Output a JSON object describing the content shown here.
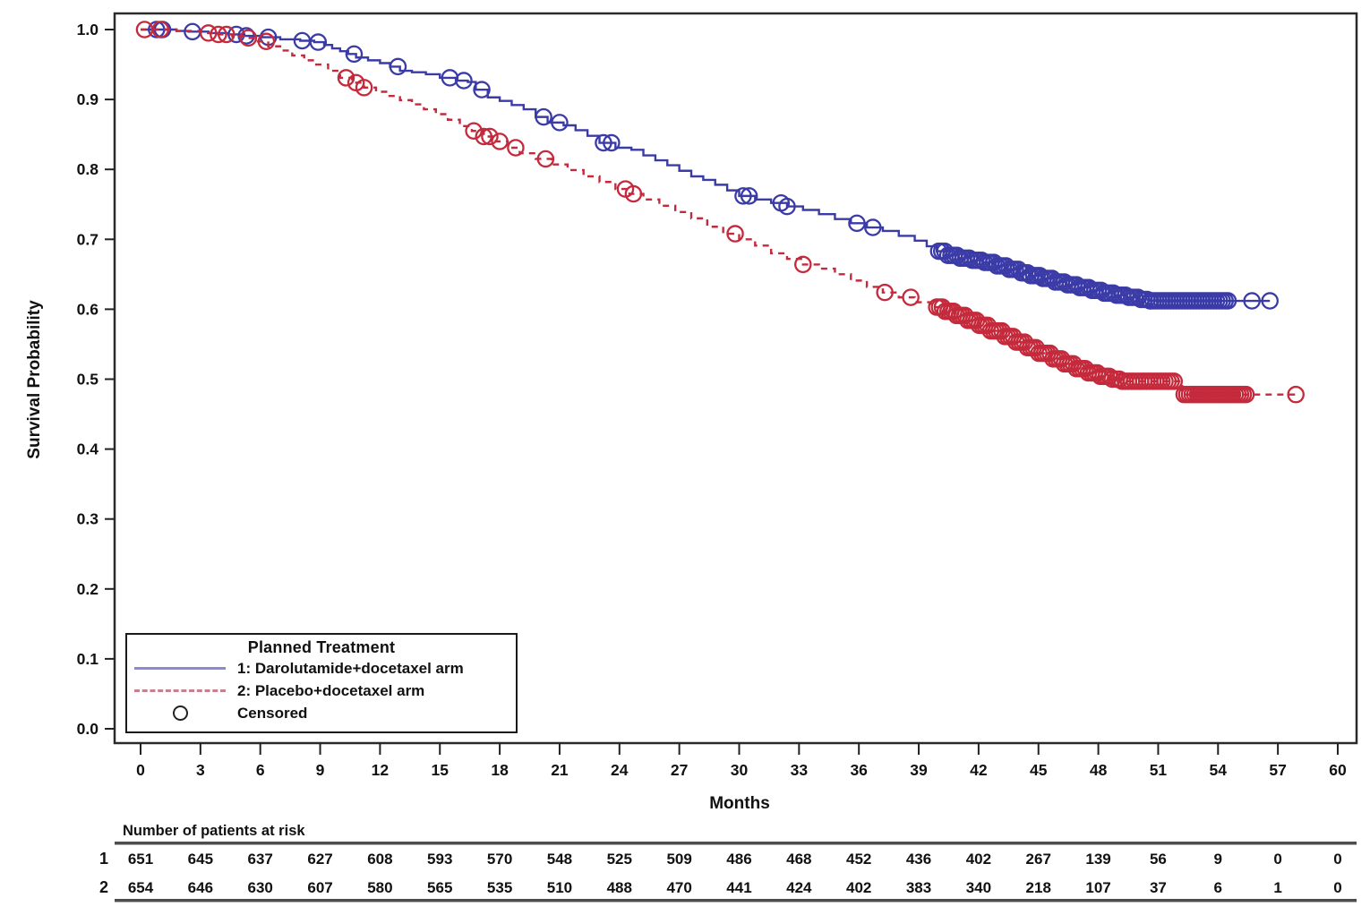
{
  "figure": {
    "ylabel": "Survival Probability",
    "xlabel": "Months",
    "colors": {
      "arm1_blue": "#3B3BA8",
      "arm2_red": "#C42A3C",
      "legend_sample_blue": "#8A8AD2",
      "legend_sample_red": "#C8808F",
      "censor_black": "#222222",
      "axis_text": "#111111",
      "table_rule": "#4d4d4d"
    }
  },
  "legend": {
    "title": "Planned Treatment",
    "entries": [
      {
        "label": "1: Darolutamide+docetaxel arm",
        "style": "solid-line",
        "color": "#3B3BA8"
      },
      {
        "label": "2: Placebo+docetaxel arm",
        "style": "dashed-line",
        "color": "#C42A3C"
      },
      {
        "label": "Censored",
        "style": "open-circle",
        "color": "#222222"
      }
    ]
  },
  "risk_table": {
    "title": "Number of patients at risk",
    "rows": [
      {
        "label": "1",
        "counts": [
          651,
          645,
          637,
          627,
          608,
          593,
          570,
          548,
          525,
          509,
          486,
          468,
          452,
          436,
          402,
          267,
          139,
          56,
          9,
          0,
          0
        ]
      },
      {
        "label": "2",
        "counts": [
          654,
          646,
          630,
          607,
          580,
          565,
          535,
          510,
          488,
          470,
          441,
          424,
          402,
          383,
          340,
          218,
          107,
          37,
          6,
          1,
          0
        ]
      }
    ]
  },
  "chart_data": {
    "type": "line",
    "subtype": "kaplan-meier-step",
    "title": "",
    "xlabel": "Months",
    "ylabel": "Survival Probability",
    "xlim": [
      0,
      60
    ],
    "ylim": [
      0.0,
      1.0
    ],
    "x_ticks": [
      0,
      3,
      6,
      9,
      12,
      15,
      18,
      21,
      24,
      27,
      30,
      33,
      36,
      39,
      42,
      45,
      48,
      51,
      54,
      57,
      60
    ],
    "y_ticks": [
      0.0,
      0.1,
      0.2,
      0.3,
      0.4,
      0.5,
      0.6,
      0.7,
      0.8,
      0.9,
      1.0
    ],
    "grid": false,
    "legend_position": "bottom-left-inside",
    "series": [
      {
        "name": "1: Darolutamide+docetaxel arm",
        "color": "#3B3BA8",
        "line_style": "solid",
        "steps": [
          [
            0,
            1.0
          ],
          [
            1.8,
            0.998
          ],
          [
            2.4,
            0.997
          ],
          [
            3.4,
            0.995
          ],
          [
            4.4,
            0.993
          ],
          [
            5.2,
            0.991
          ],
          [
            6.1,
            0.989
          ],
          [
            7.0,
            0.986
          ],
          [
            8.0,
            0.984
          ],
          [
            8.7,
            0.982
          ],
          [
            9.2,
            0.978
          ],
          [
            9.6,
            0.973
          ],
          [
            10.0,
            0.969
          ],
          [
            10.4,
            0.965
          ],
          [
            10.8,
            0.96
          ],
          [
            11.4,
            0.956
          ],
          [
            12.0,
            0.952
          ],
          [
            12.5,
            0.947
          ],
          [
            13.0,
            0.941
          ],
          [
            13.6,
            0.939
          ],
          [
            14.3,
            0.936
          ],
          [
            15.0,
            0.931
          ],
          [
            15.8,
            0.927
          ],
          [
            16.4,
            0.925
          ],
          [
            16.8,
            0.914
          ],
          [
            17.4,
            0.903
          ],
          [
            18.0,
            0.898
          ],
          [
            18.6,
            0.892
          ],
          [
            19.2,
            0.886
          ],
          [
            19.8,
            0.875
          ],
          [
            20.4,
            0.867
          ],
          [
            21.2,
            0.863
          ],
          [
            21.8,
            0.856
          ],
          [
            22.4,
            0.848
          ],
          [
            23.0,
            0.838
          ],
          [
            23.8,
            0.831
          ],
          [
            24.6,
            0.828
          ],
          [
            25.2,
            0.82
          ],
          [
            25.8,
            0.813
          ],
          [
            26.4,
            0.806
          ],
          [
            27.0,
            0.798
          ],
          [
            27.6,
            0.79
          ],
          [
            28.2,
            0.785
          ],
          [
            28.8,
            0.778
          ],
          [
            29.4,
            0.77
          ],
          [
            30.0,
            0.762
          ],
          [
            30.8,
            0.757
          ],
          [
            31.6,
            0.752
          ],
          [
            32.4,
            0.747
          ],
          [
            33.2,
            0.742
          ],
          [
            34.0,
            0.736
          ],
          [
            34.8,
            0.729
          ],
          [
            35.6,
            0.723
          ],
          [
            36.4,
            0.717
          ],
          [
            37.2,
            0.712
          ],
          [
            38.0,
            0.705
          ],
          [
            38.8,
            0.698
          ],
          [
            39.4,
            0.69
          ],
          [
            39.9,
            0.683
          ],
          [
            40.4,
            0.677
          ],
          [
            41.0,
            0.673
          ],
          [
            41.6,
            0.67
          ],
          [
            42.2,
            0.667
          ],
          [
            42.8,
            0.662
          ],
          [
            43.4,
            0.657
          ],
          [
            44.0,
            0.652
          ],
          [
            44.6,
            0.648
          ],
          [
            45.2,
            0.644
          ],
          [
            45.8,
            0.639
          ],
          [
            46.4,
            0.635
          ],
          [
            47.0,
            0.631
          ],
          [
            47.6,
            0.627
          ],
          [
            48.2,
            0.623
          ],
          [
            48.8,
            0.62
          ],
          [
            49.4,
            0.617
          ],
          [
            50.0,
            0.614
          ],
          [
            50.6,
            0.612
          ],
          [
            56.6,
            0.612
          ]
        ],
        "censor_months": [
          0.8,
          1.1,
          2.6,
          4.8,
          5.3,
          6.4,
          8.1,
          8.9,
          10.7,
          12.9,
          15.5,
          16.2,
          17.1,
          20.2,
          21.0,
          23.2,
          23.6,
          30.2,
          30.5,
          32.1,
          32.4,
          35.9,
          36.7,
          55.7,
          56.6
        ],
        "censor_bands": [
          {
            "from_month": 40.0,
            "to_month": 50.6,
            "count": 70
          },
          {
            "from_month": 50.6,
            "to_month": 54.5,
            "count": 28
          }
        ]
      },
      {
        "name": "2: Placebo+docetaxel arm",
        "color": "#C42A3C",
        "line_style": "dashed",
        "steps": [
          [
            0,
            1.0
          ],
          [
            1.8,
            0.998
          ],
          [
            3.0,
            0.995
          ],
          [
            3.8,
            0.993
          ],
          [
            4.6,
            0.99
          ],
          [
            5.2,
            0.988
          ],
          [
            5.8,
            0.983
          ],
          [
            6.4,
            0.976
          ],
          [
            7.0,
            0.97
          ],
          [
            7.6,
            0.963
          ],
          [
            8.2,
            0.956
          ],
          [
            8.8,
            0.95
          ],
          [
            9.4,
            0.941
          ],
          [
            10.0,
            0.931
          ],
          [
            10.6,
            0.924
          ],
          [
            11.2,
            0.917
          ],
          [
            11.8,
            0.911
          ],
          [
            12.4,
            0.905
          ],
          [
            13.0,
            0.899
          ],
          [
            13.6,
            0.893
          ],
          [
            14.2,
            0.886
          ],
          [
            14.8,
            0.879
          ],
          [
            15.4,
            0.871
          ],
          [
            16.0,
            0.862
          ],
          [
            16.6,
            0.855
          ],
          [
            17.2,
            0.847
          ],
          [
            17.8,
            0.84
          ],
          [
            18.4,
            0.831
          ],
          [
            19.0,
            0.823
          ],
          [
            19.8,
            0.815
          ],
          [
            20.6,
            0.807
          ],
          [
            21.4,
            0.799
          ],
          [
            22.2,
            0.79
          ],
          [
            23.0,
            0.782
          ],
          [
            23.8,
            0.772
          ],
          [
            24.5,
            0.765
          ],
          [
            25.2,
            0.757
          ],
          [
            26.0,
            0.748
          ],
          [
            26.8,
            0.739
          ],
          [
            27.6,
            0.73
          ],
          [
            28.4,
            0.718
          ],
          [
            29.2,
            0.708
          ],
          [
            30.0,
            0.7
          ],
          [
            30.8,
            0.691
          ],
          [
            31.6,
            0.68
          ],
          [
            32.4,
            0.672
          ],
          [
            33.2,
            0.664
          ],
          [
            34.0,
            0.658
          ],
          [
            34.8,
            0.65
          ],
          [
            35.6,
            0.641
          ],
          [
            36.4,
            0.632
          ],
          [
            37.2,
            0.624
          ],
          [
            38.0,
            0.617
          ],
          [
            38.8,
            0.61
          ],
          [
            39.6,
            0.603
          ],
          [
            40.2,
            0.597
          ],
          [
            40.8,
            0.591
          ],
          [
            41.4,
            0.584
          ],
          [
            42.0,
            0.577
          ],
          [
            42.6,
            0.569
          ],
          [
            43.2,
            0.561
          ],
          [
            43.8,
            0.553
          ],
          [
            44.4,
            0.545
          ],
          [
            45.0,
            0.537
          ],
          [
            45.6,
            0.529
          ],
          [
            46.2,
            0.522
          ],
          [
            46.8,
            0.515
          ],
          [
            47.4,
            0.509
          ],
          [
            48.0,
            0.504
          ],
          [
            48.6,
            0.5
          ],
          [
            49.2,
            0.497
          ],
          [
            51.9,
            0.497
          ],
          [
            52.2,
            0.478
          ],
          [
            57.9,
            0.478
          ]
        ],
        "censor_months": [
          0.2,
          1.0,
          3.4,
          3.9,
          4.3,
          5.4,
          6.3,
          10.3,
          10.8,
          11.2,
          16.7,
          17.2,
          17.5,
          18.0,
          18.8,
          20.3,
          24.3,
          24.7,
          29.8,
          33.2,
          37.3,
          38.6,
          57.9
        ],
        "censor_bands": [
          {
            "from_month": 39.9,
            "to_month": 46.3,
            "count": 46
          },
          {
            "from_month": 46.3,
            "to_month": 48.7,
            "count": 17
          },
          {
            "from_month": 48.9,
            "to_month": 51.8,
            "count": 20
          },
          {
            "from_month": 52.3,
            "to_month": 55.4,
            "count": 24
          }
        ]
      }
    ]
  }
}
